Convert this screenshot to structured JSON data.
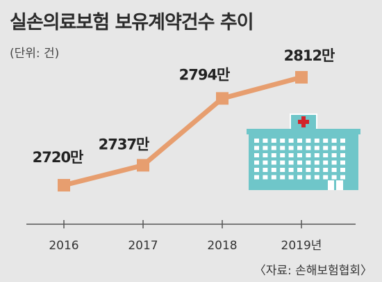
{
  "title": "실손의료보험 보유계약건수 추이",
  "unit_note": "(단위: 건)",
  "source": "〈자료: 손해보험협회〉",
  "colors": {
    "background": "#e7e7e7",
    "line": "#e79e6f",
    "marker": "#e79e6f",
    "axis": "#555555",
    "building": "#6fc6c9",
    "window": "#ffffff",
    "cross": "#d3232a"
  },
  "icon": "hospital-building-icon",
  "chart_data": {
    "type": "line",
    "title": "실손의료보험 보유계약건수 추이",
    "unit": "(단위: 건)",
    "categories": [
      "2016",
      "2017",
      "2018",
      "2019년"
    ],
    "values": [
      2720,
      2737,
      2794,
      2812
    ],
    "value_labels": [
      "2720만",
      "2737만",
      "2794만",
      "2812만"
    ],
    "ylim": [
      2700,
      2820
    ],
    "grid": false,
    "legend": "none"
  }
}
